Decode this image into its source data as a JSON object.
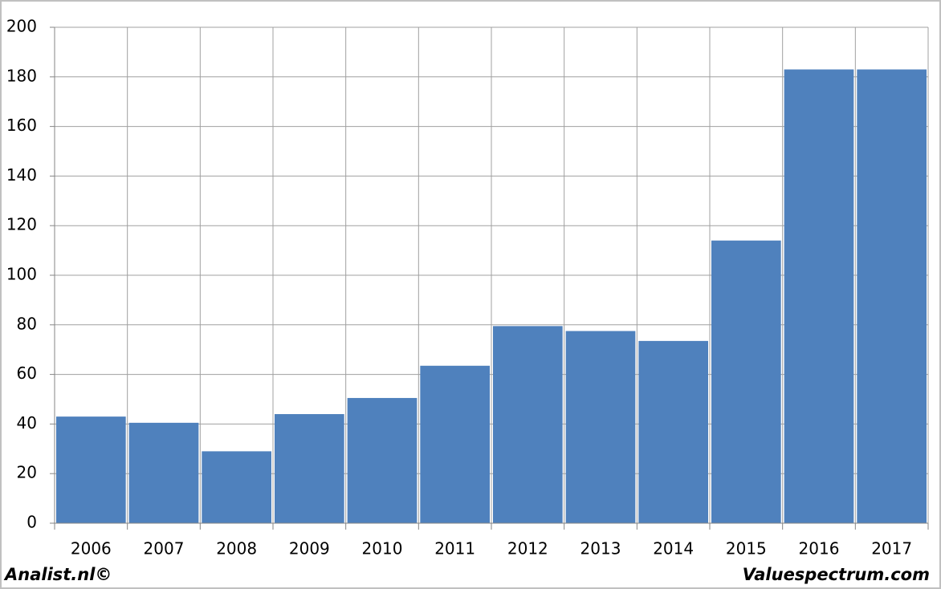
{
  "chart_data": {
    "type": "bar",
    "categories": [
      "2006",
      "2007",
      "2008",
      "2009",
      "2010",
      "2011",
      "2012",
      "2013",
      "2014",
      "2015",
      "2016",
      "2017"
    ],
    "values": [
      43,
      40.5,
      29,
      44,
      50.5,
      63.5,
      79.5,
      77.5,
      73.5,
      114,
      183,
      183
    ],
    "color": "#4f81bd",
    "ylim": [
      0,
      200
    ],
    "yticks": [
      0,
      20,
      40,
      60,
      80,
      100,
      120,
      140,
      160,
      180,
      200
    ],
    "grid": true,
    "annotations": [
      "Analist.nl©",
      "Valuespectrum.com"
    ]
  }
}
